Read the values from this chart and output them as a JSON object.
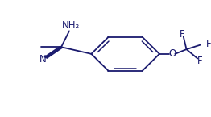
{
  "bg_color": "#ffffff",
  "line_color": "#1a1a6e",
  "line_width": 1.3,
  "font_size": 7.5,
  "figsize": [
    2.62,
    1.45
  ],
  "dpi": 100,
  "NH2_label": "NH₂",
  "N_label": "N",
  "O_label": "O",
  "F_labels": [
    "F",
    "F",
    "F"
  ]
}
